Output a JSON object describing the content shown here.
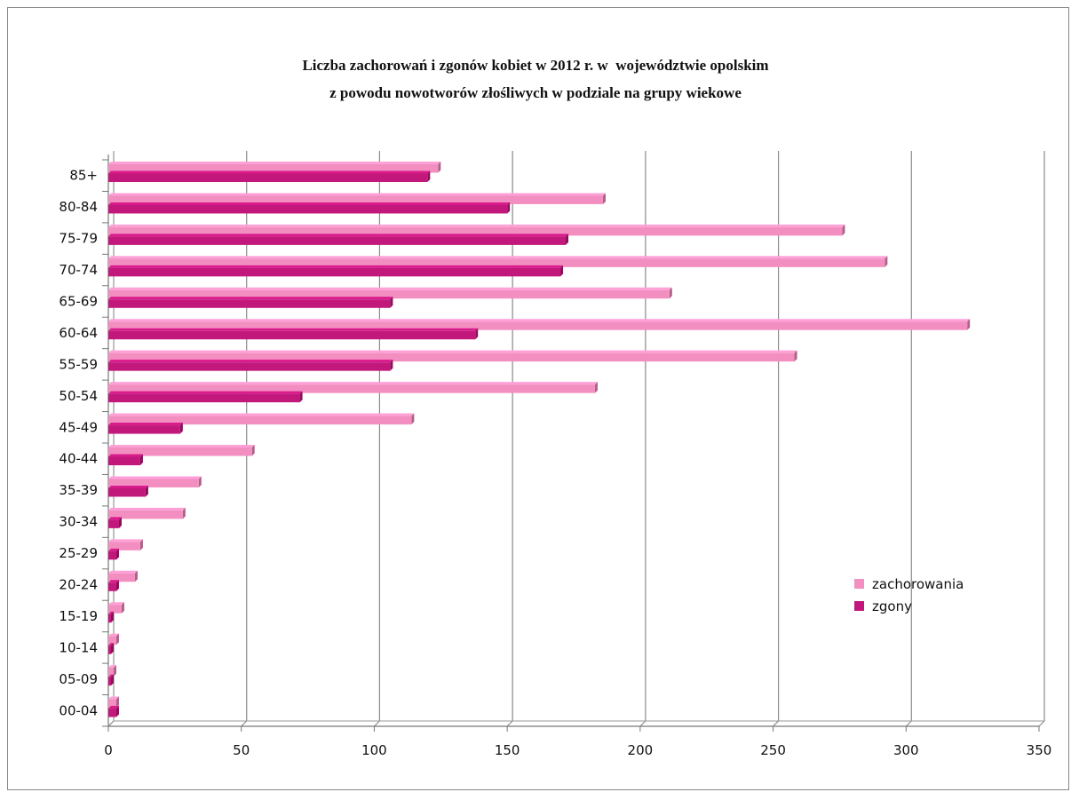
{
  "chart_data": {
    "type": "bar",
    "orientation": "horizontal",
    "title_line1": "Liczba zachorowań i zgonów kobiet w 2012 r. w  województwie opolskim",
    "title_line2": "z powodu nowotworów złośliwych w podziale na grupy wiekowe",
    "categories": [
      "85+",
      "80-84",
      "75-79",
      "70-74",
      "65-69",
      "60-64",
      "55-59",
      "50-54",
      "45-49",
      "40-44",
      "35-39",
      "30-34",
      "25-29",
      "20-24",
      "15-19",
      "10-14",
      "05-09",
      "00-04"
    ],
    "series": [
      {
        "name": "zachorowania",
        "color": "#f28fc0",
        "values": [
          124,
          186,
          276,
          292,
          211,
          323,
          258,
          183,
          114,
          54,
          34,
          28,
          12,
          10,
          5,
          3,
          2,
          3
        ]
      },
      {
        "name": "zgony",
        "color": "#c2187c",
        "values": [
          120,
          150,
          172,
          170,
          106,
          138,
          106,
          72,
          27,
          12,
          14,
          4,
          3,
          3,
          1,
          1,
          1,
          3
        ]
      }
    ],
    "xlim": [
      0,
      350
    ],
    "xticks": [
      0,
      50,
      100,
      150,
      200,
      250,
      300,
      350
    ],
    "grid": true,
    "legend": "right"
  }
}
